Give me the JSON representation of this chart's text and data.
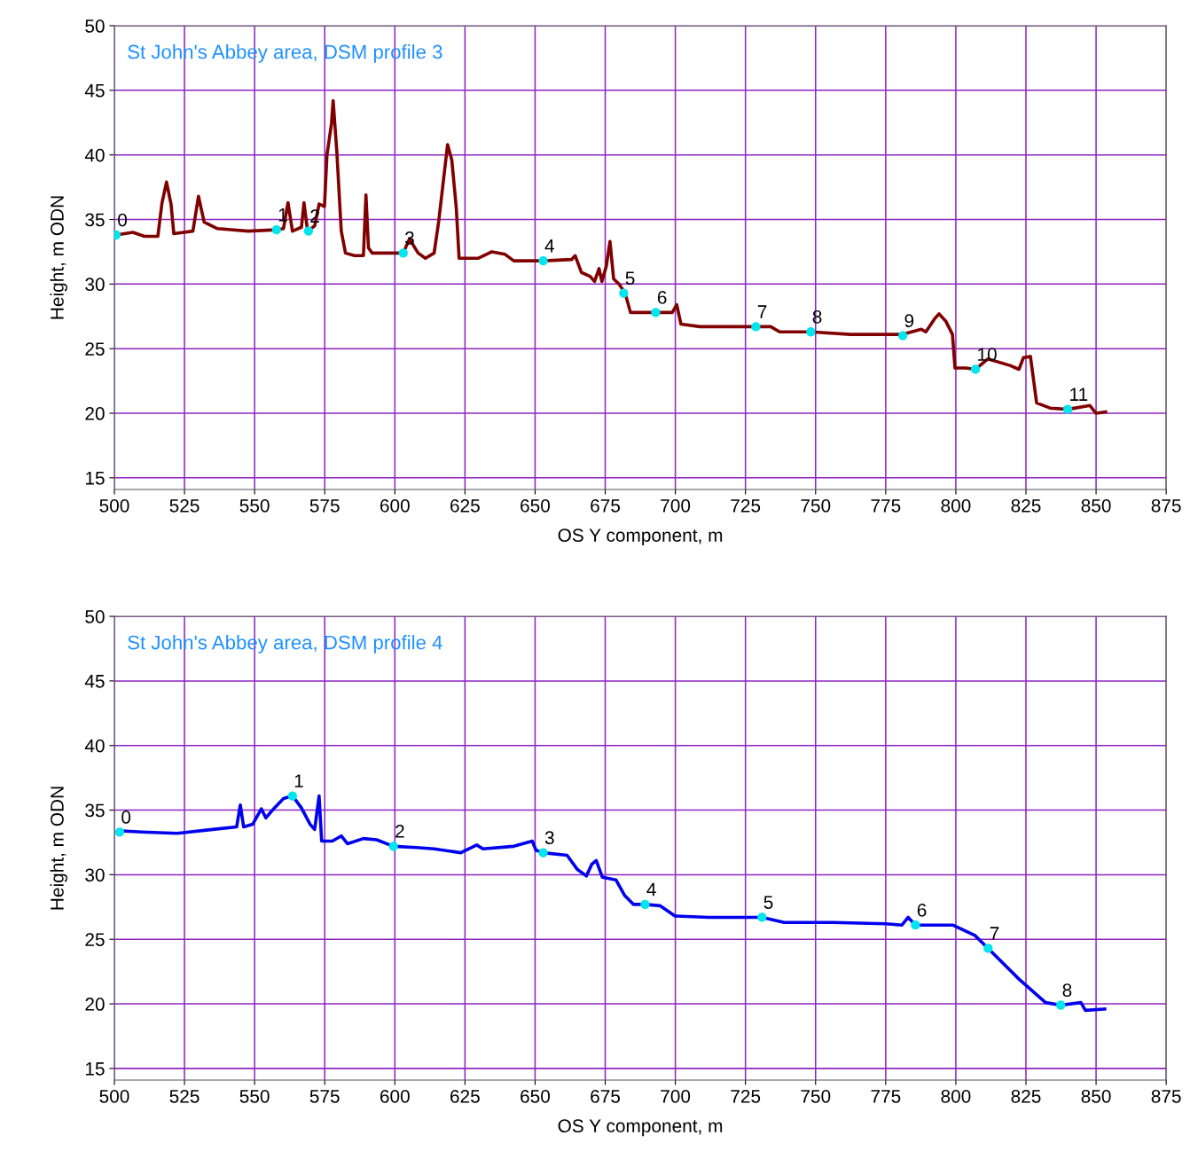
{
  "chart_data": [
    {
      "type": "line",
      "title": "St John's Abbey area, DSM profile 3",
      "xlabel": "OS Y component, m",
      "ylabel": "Height, m ODN",
      "xlim": [
        500,
        875
      ],
      "ylim": [
        14.1,
        50
      ],
      "xticks": [
        500,
        525,
        550,
        575,
        600,
        625,
        650,
        675,
        700,
        725,
        750,
        775,
        800,
        825,
        850,
        875
      ],
      "yticks": [
        15,
        20,
        25,
        30,
        35,
        40,
        45,
        50
      ],
      "grid": true,
      "legend": false,
      "marker": "none",
      "line_style": "solid",
      "series": [
        {
          "type": "line",
          "color": "#800000",
          "x": [
            500.6,
            506.6,
            510.7,
            515.5,
            517,
            518.6,
            520.2,
            521.2,
            528,
            530,
            532,
            536.6,
            547.7,
            557.8,
            560.3,
            561.9,
            563.5,
            566.7,
            567.6,
            568.9,
            571.4,
            573,
            574.9,
            575.8,
            577.4,
            578,
            579.3,
            580.9,
            582.4,
            585.6,
            588.8,
            589.7,
            590.6,
            591.9,
            601.4,
            603,
            605.2,
            608.3,
            610.9,
            614,
            615.6,
            618.8,
            620.3,
            621.9,
            622.9,
            629.8,
            634.6,
            639.3,
            642.4,
            653,
            663,
            664.3,
            666.5,
            669.6,
            671.2,
            672.8,
            673.8,
            675.4,
            676.7,
            678,
            679.9,
            682.1,
            684,
            687.3,
            693.5,
            698.9,
            700.5,
            702,
            708.8,
            728.7,
            734,
            737.2,
            748.3,
            762.5,
            780.8,
            787.7,
            789.3,
            792.4,
            794,
            796.5,
            798.8,
            799.7,
            803.6,
            807,
            811.4,
            819.3,
            822.5,
            824.1,
            826.6,
            828.8,
            833.6,
            839.9,
            847.8,
            850,
            853.4
          ],
          "values": [
            33.8,
            34.0,
            33.7,
            33.7,
            36.3,
            37.9,
            36.2,
            33.9,
            34.1,
            36.8,
            34.8,
            34.3,
            34.1,
            34.2,
            34.3,
            36.3,
            34.1,
            34.4,
            36.3,
            34.1,
            34.5,
            36.2,
            36.0,
            40.0,
            42.4,
            44.2,
            40.3,
            34.1,
            32.4,
            32.2,
            32.2,
            36.9,
            32.8,
            32.4,
            32.4,
            32.4,
            33.5,
            32.4,
            32.0,
            32.4,
            34.8,
            40.8,
            39.6,
            35.9,
            32.0,
            32.0,
            32.5,
            32.3,
            31.8,
            31.8,
            31.9,
            32.2,
            30.9,
            30.6,
            30.2,
            31.2,
            30.2,
            31.4,
            33.3,
            30.4,
            30.0,
            29.3,
            27.8,
            27.8,
            27.8,
            27.8,
            28.4,
            26.9,
            26.7,
            26.7,
            26.7,
            26.3,
            26.3,
            26.1,
            26.1,
            26.5,
            26.3,
            27.3,
            27.7,
            27.1,
            26.1,
            23.5,
            23.5,
            23.4,
            24.2,
            23.7,
            23.4,
            24.3,
            24.4,
            20.8,
            20.4,
            20.3,
            20.6,
            20.0,
            20.1
          ]
        },
        {
          "type": "scatter",
          "color": "#00e5ee",
          "marker": "circle",
          "x": [
            500.6,
            557.8,
            569.2,
            603,
            652.9,
            681.6,
            693,
            728.7,
            748.3,
            781.1,
            807,
            839.9
          ],
          "values": [
            33.8,
            34.2,
            34.1,
            32.4,
            31.8,
            29.3,
            27.8,
            26.7,
            26.3,
            26.0,
            23.4,
            20.3
          ]
        }
      ],
      "annotations": [
        {
          "text": "0",
          "x": 500.6,
          "y": 33.8
        },
        {
          "text": "1",
          "x": 557.8,
          "y": 34.2
        },
        {
          "text": "2",
          "x": 569.2,
          "y": 34.1
        },
        {
          "text": "3",
          "x": 603,
          "y": 32.4
        },
        {
          "text": "4",
          "x": 652.9,
          "y": 31.8
        },
        {
          "text": "5",
          "x": 681.6,
          "y": 29.3
        },
        {
          "text": "6",
          "x": 693,
          "y": 27.8
        },
        {
          "text": "7",
          "x": 728.7,
          "y": 26.7
        },
        {
          "text": "8",
          "x": 748.3,
          "y": 26.3
        },
        {
          "text": "9",
          "x": 781.1,
          "y": 26.0
        },
        {
          "text": "10",
          "x": 807,
          "y": 23.4
        },
        {
          "text": "11",
          "x": 839.9,
          "y": 20.3
        }
      ]
    },
    {
      "type": "line",
      "title": "St John's Abbey area, DSM profile 4",
      "xlabel": "OS Y component, m",
      "ylabel": "Height, m ODN",
      "xlim": [
        500,
        875
      ],
      "ylim": [
        14.1,
        50
      ],
      "xticks": [
        500,
        525,
        550,
        575,
        600,
        625,
        650,
        675,
        700,
        725,
        750,
        775,
        800,
        825,
        850,
        875
      ],
      "yticks": [
        15,
        20,
        25,
        30,
        35,
        40,
        45,
        50
      ],
      "grid": true,
      "legend": false,
      "marker": "none",
      "line_style": "solid",
      "series": [
        {
          "type": "line",
          "color": "#0000ee",
          "x": [
            501.3,
            509.8,
            522.4,
            535,
            543.6,
            544.9,
            546.1,
            549.3,
            552.4,
            554,
            557.2,
            560.3,
            563.5,
            566.6,
            569.8,
            571.4,
            573,
            573.9,
            577.7,
            580.9,
            583.1,
            588.8,
            593.5,
            599.5,
            607.7,
            614,
            623.5,
            629.2,
            631.4,
            642.4,
            649,
            650.3,
            652.9,
            661.4,
            665.1,
            668.3,
            670.2,
            671.8,
            674,
            678.8,
            681.9,
            685.1,
            689.2,
            694.5,
            699.9,
            711.9,
            730.9,
            738.8,
            756.2,
            775.1,
            780.8,
            783,
            785.6,
            798.9,
            806.8,
            811.5,
            822.6,
            832,
            837.4,
            844.6,
            846.2,
            853.1
          ],
          "values": [
            33.4,
            33.3,
            33.2,
            33.5,
            33.7,
            35.4,
            33.7,
            33.9,
            35.1,
            34.4,
            35.2,
            35.9,
            36.1,
            35.2,
            33.9,
            33.5,
            36.1,
            32.6,
            32.6,
            33.0,
            32.4,
            32.8,
            32.7,
            32.2,
            32.1,
            32.0,
            31.7,
            32.3,
            32.0,
            32.2,
            32.6,
            31.9,
            31.7,
            31.5,
            30.4,
            29.9,
            30.8,
            31.1,
            29.8,
            29.6,
            28.4,
            27.7,
            27.7,
            27.6,
            26.8,
            26.7,
            26.7,
            26.3,
            26.3,
            26.2,
            26.1,
            26.7,
            26.1,
            26.1,
            25.3,
            24.3,
            21.9,
            20.1,
            19.9,
            20.1,
            19.5,
            19.6
          ]
        },
        {
          "type": "scatter",
          "color": "#00e5ee",
          "marker": "circle",
          "x": [
            501.9,
            563.5,
            599.5,
            652.9,
            689.2,
            730.9,
            785.6,
            811.5,
            837.4
          ],
          "values": [
            33.3,
            36.1,
            32.2,
            31.7,
            27.7,
            26.7,
            26.1,
            24.3,
            19.9
          ]
        }
      ],
      "annotations": [
        {
          "text": "0",
          "x": 501.9,
          "y": 33.3
        },
        {
          "text": "1",
          "x": 563.5,
          "y": 36.1
        },
        {
          "text": "2",
          "x": 599.5,
          "y": 32.2
        },
        {
          "text": "3",
          "x": 652.9,
          "y": 31.7
        },
        {
          "text": "4",
          "x": 689.2,
          "y": 27.7
        },
        {
          "text": "5",
          "x": 730.9,
          "y": 26.7
        },
        {
          "text": "6",
          "x": 785.6,
          "y": 26.1
        },
        {
          "text": "7",
          "x": 811.5,
          "y": 24.3
        },
        {
          "text": "8",
          "x": 837.4,
          "y": 19.9
        }
      ]
    }
  ]
}
